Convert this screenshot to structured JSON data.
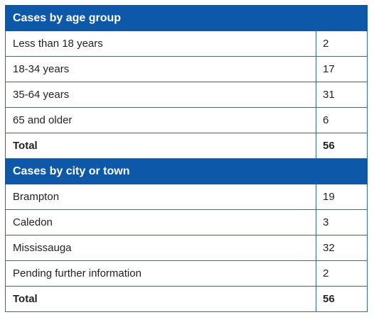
{
  "sections": [
    {
      "title": "Cases by age group",
      "rows": [
        {
          "label": "Less than 18 years",
          "value": "2"
        },
        {
          "label": "18-34 years",
          "value": "17"
        },
        {
          "label": "35-64 years",
          "value": "31"
        },
        {
          "label": "65 and older",
          "value": "6"
        }
      ],
      "total": {
        "label": "Total",
        "value": "56"
      }
    },
    {
      "title": "Cases by city or town",
      "rows": [
        {
          "label": "Brampton",
          "value": "19"
        },
        {
          "label": "Caledon",
          "value": "3"
        },
        {
          "label": "Mississauga",
          "value": "32"
        },
        {
          "label": "Pending further information",
          "value": "2"
        }
      ],
      "total": {
        "label": "Total",
        "value": "56"
      }
    }
  ],
  "colors": {
    "header_background": "#0d58a8",
    "header_text": "#ffffff",
    "border": "#2f6aa7",
    "body_text": "#222222"
  }
}
